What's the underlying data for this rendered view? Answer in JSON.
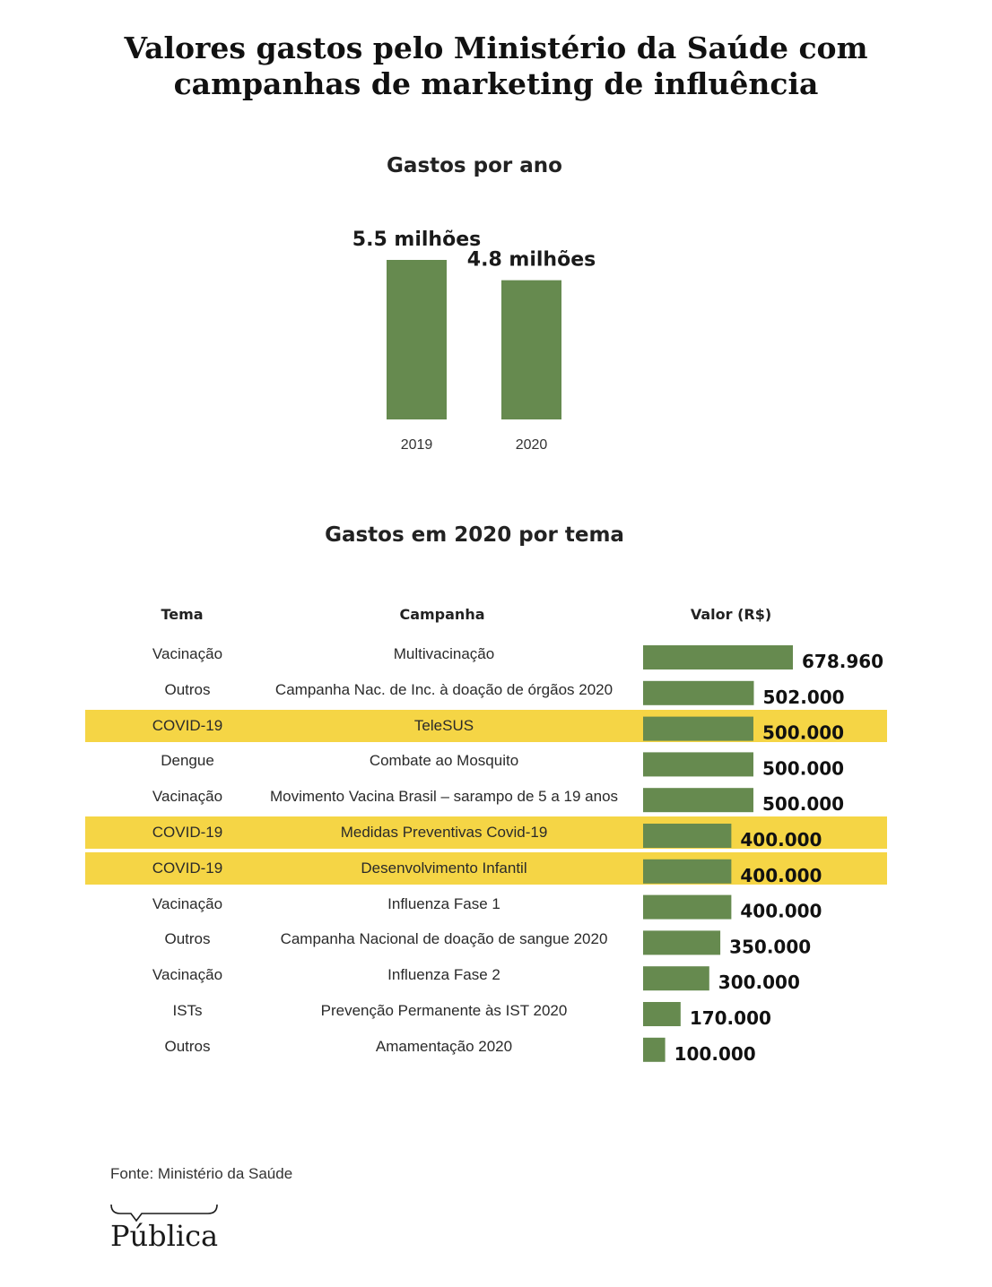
{
  "title_lines": [
    "Valores gastos pelo Ministério da Saúde com",
    "campanhas de marketing de influência"
  ],
  "section1_title": "Gastos por ano",
  "section2_title": "Gastos em 2020 por tema",
  "table_headers": {
    "tema": "Tema",
    "campanha": "Campanha",
    "valor": "Valor (R$)"
  },
  "source": "Fonte: Ministério da Saúde",
  "logo_text": "Pública",
  "colors": {
    "bar": "#668a4f",
    "highlight": "#f5d545"
  },
  "chart_data": [
    {
      "type": "bar",
      "title": "Gastos por ano",
      "categories": [
        "2019",
        "2020"
      ],
      "values": [
        5.5,
        4.8
      ],
      "value_labels": [
        "5.5 milhões",
        "4.8 milhões"
      ],
      "ylim": [
        0,
        5.5
      ]
    },
    {
      "type": "bar",
      "orientation": "horizontal",
      "title": "Gastos em 2020 por tema",
      "rows": [
        {
          "tema": "Vacinação",
          "campanha": "Multivacinação",
          "value": 678960,
          "label": "678.960",
          "highlight": false
        },
        {
          "tema": "Outros",
          "campanha": "Campanha Nac. de Inc. à doação de órgãos 2020",
          "value": 502000,
          "label": "502.000",
          "highlight": false
        },
        {
          "tema": "COVID-19",
          "campanha": "TeleSUS",
          "value": 500000,
          "label": "500.000",
          "highlight": true
        },
        {
          "tema": "Dengue",
          "campanha": "Combate ao Mosquito",
          "value": 500000,
          "label": "500.000",
          "highlight": false
        },
        {
          "tema": "Vacinação",
          "campanha": "Movimento Vacina Brasil – sarampo de 5 a 19 anos",
          "value": 500000,
          "label": "500.000",
          "highlight": false
        },
        {
          "tema": "COVID-19",
          "campanha": "Medidas Preventivas Covid-19",
          "value": 400000,
          "label": "400.000",
          "highlight": true
        },
        {
          "tema": "COVID-19",
          "campanha": "Desenvolvimento Infantil",
          "value": 400000,
          "label": "400.000",
          "highlight": true
        },
        {
          "tema": "Vacinação",
          "campanha": "Influenza Fase 1",
          "value": 400000,
          "label": "400.000",
          "highlight": false
        },
        {
          "tema": "Outros",
          "campanha": "Campanha Nacional de doação de sangue 2020",
          "value": 350000,
          "label": "350.000",
          "highlight": false
        },
        {
          "tema": "Vacinação",
          "campanha": "Influenza Fase 2",
          "value": 300000,
          "label": "300.000",
          "highlight": false
        },
        {
          "tema": "ISTs",
          "campanha": "Prevenção Permanente às IST 2020",
          "value": 170000,
          "label": "170.000",
          "highlight": false
        },
        {
          "tema": "Outros",
          "campanha": "Amamentação 2020",
          "value": 100000,
          "label": "100.000",
          "highlight": false
        }
      ]
    }
  ]
}
